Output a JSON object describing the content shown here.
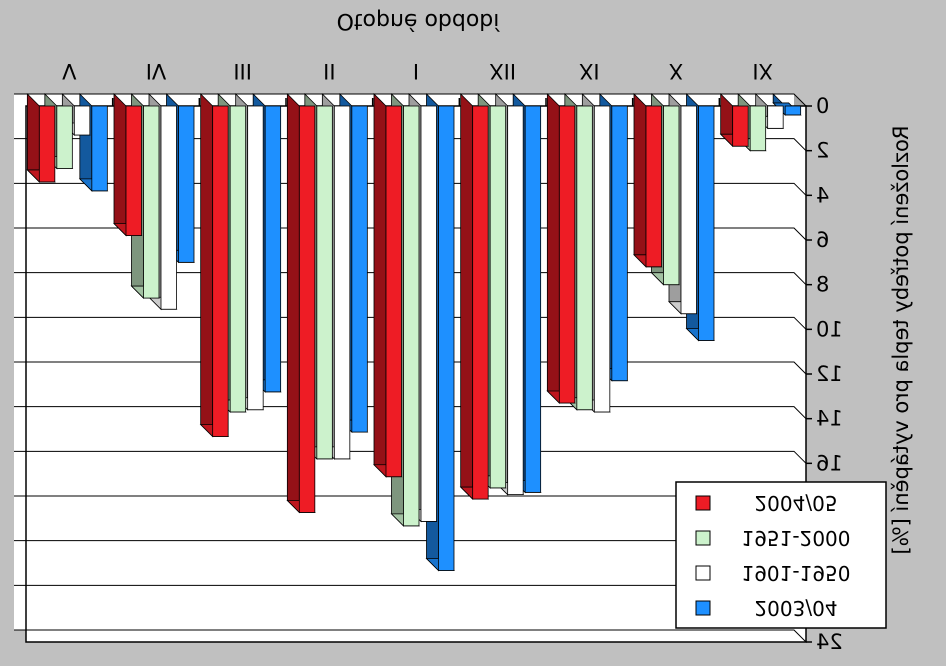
{
  "chart_data": {
    "type": "bar",
    "title": "Otopné období",
    "ylabel": "Rozložení potřeby tepla pro vytápění [%]",
    "xlabel": "",
    "categories": [
      "IX",
      "X",
      "XI",
      "XII",
      "I",
      "II",
      "III",
      "IV",
      "V"
    ],
    "series": [
      {
        "name": "2003/04",
        "color": "#1e90ff",
        "values": [
          0.4,
          10.5,
          12.3,
          17.3,
          20.8,
          14.6,
          12.8,
          7.0,
          3.8
        ]
      },
      {
        "name": "1901-1950",
        "color": "#ffffff",
        "values": [
          1.0,
          9.3,
          13.7,
          17.4,
          18.6,
          15.8,
          13.6,
          9.1,
          1.3
        ]
      },
      {
        "name": "1951-2000",
        "color": "#ccf2cc",
        "values": [
          2.0,
          8.0,
          13.6,
          17.1,
          18.8,
          15.8,
          13.7,
          8.6,
          2.8
        ]
      },
      {
        "name": "2004/05",
        "color": "#ee1c25",
        "values": [
          1.8,
          7.2,
          13.3,
          17.6,
          16.6,
          18.2,
          14.8,
          5.8,
          3.4
        ]
      }
    ],
    "ytick_labels": [
      "0",
      "2",
      "4",
      "6",
      "8",
      "10",
      "12",
      "14",
      "16",
      "18",
      "20",
      "22",
      "24"
    ],
    "ylim": [
      0,
      24
    ],
    "grid": true,
    "legend_position": "bottom-right",
    "mirrored": true
  }
}
